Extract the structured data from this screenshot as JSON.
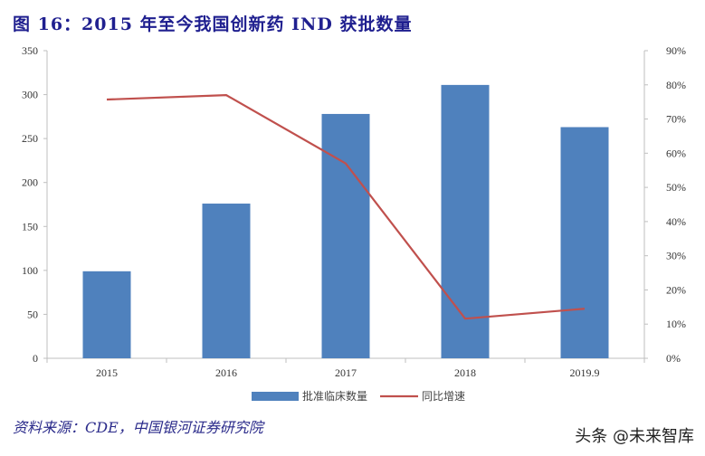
{
  "title": "图 16：2015 年至今我国创新药 IND 获批数量",
  "source": "资料来源：CDE，中国银河证券研究院",
  "watermark": "头条 @未来智库",
  "colors": {
    "bar": "#4f81bd",
    "line": "#c0504d",
    "title": "#1f1f8f"
  },
  "chart_data": {
    "type": "bar",
    "title": "2015 年至今我国创新药 IND 获批数量",
    "categories": [
      "2015",
      "2016",
      "2017",
      "2018",
      "2019.9"
    ],
    "series": [
      {
        "name": "批准临床数量",
        "type": "bar",
        "axis": "left",
        "values": [
          99,
          176,
          278,
          311,
          263
        ]
      },
      {
        "name": "同比增速",
        "type": "line",
        "axis": "right",
        "values": [
          0.757,
          0.77,
          0.57,
          0.116,
          0.145
        ]
      }
    ],
    "left_axis": {
      "ylim": [
        0,
        350
      ],
      "ticks": [
        "0",
        "50",
        "100",
        "150",
        "200",
        "250",
        "300",
        "350"
      ]
    },
    "right_axis": {
      "ylim": [
        0,
        0.9
      ],
      "ticks": [
        "0%",
        "10%",
        "20%",
        "30%",
        "40%",
        "50%",
        "60%",
        "70%",
        "80%",
        "90%"
      ]
    },
    "xlabel": "",
    "ylabel": "",
    "grid": false,
    "legend_position": "bottom"
  }
}
